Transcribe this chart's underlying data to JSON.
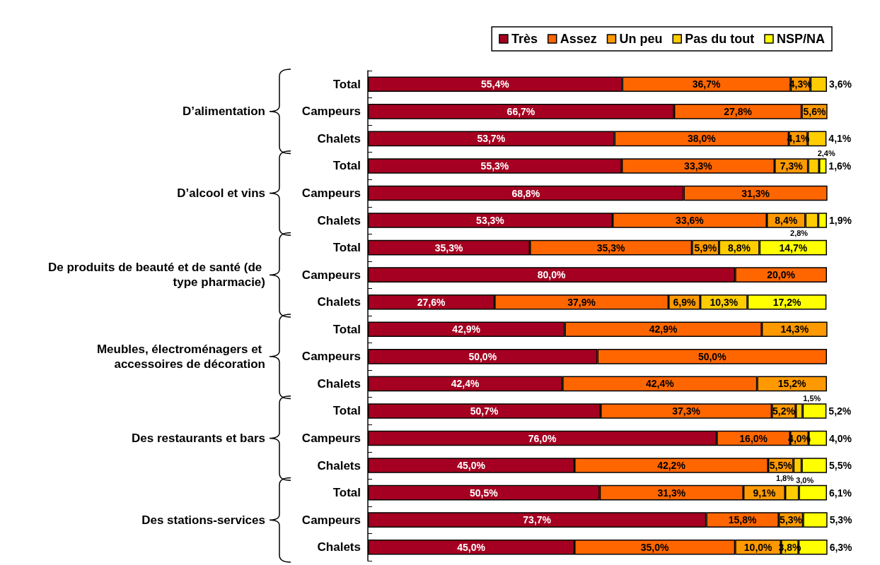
{
  "chart_data": {
    "type": "bar",
    "orientation": "horizontal",
    "stacked": true,
    "legend": "top right",
    "grid": false,
    "tick_labels": "y",
    "data_labels": true,
    "xlim": [
      0,
      100
    ],
    "categories": [
      "Total",
      "Campeurs",
      "Chalets",
      "Total",
      "Campeurs",
      "Chalets",
      "Total",
      "Campeurs",
      "Chalets",
      "Total",
      "Campeurs",
      "Chalets",
      "Total",
      "Campeurs",
      "Chalets",
      "Total",
      "Campeurs",
      "Chalets"
    ],
    "annotations": [
      "D’alimentation",
      "D’alcool et vins",
      "De produits de beauté et de santé (de type pharmacie)",
      "Meubles, électroménagers et accessoires de décoration",
      "Des restaurants et bars",
      "Des stations-services"
    ],
    "series": [
      {
        "name": "Très",
        "color": "#a50021",
        "values": [
          55.4,
          66.7,
          53.7,
          55.3,
          68.8,
          53.3,
          35.3,
          80.0,
          27.6,
          42.9,
          50.0,
          42.4,
          50.7,
          76.0,
          45.0,
          50.5,
          73.7,
          45.0
        ],
        "value_labels": [
          "55,4%",
          "66,7%",
          "53,7%",
          "55,3%",
          "68,8%",
          "53,3%",
          "35,3%",
          "80,0%",
          "27,6%",
          "42,9%",
          "50,0%",
          "42,4%",
          "50,7%",
          "76,0%",
          "45,0%",
          "50,5%",
          "73,7%",
          "45,0%"
        ]
      },
      {
        "name": "Assez",
        "color": "#ff6600",
        "values": [
          36.7,
          27.8,
          38.0,
          33.3,
          31.3,
          33.6,
          35.3,
          20.0,
          37.9,
          42.9,
          50.0,
          42.4,
          37.3,
          16.0,
          42.2,
          31.3,
          15.8,
          35.0
        ],
        "value_labels": [
          "36,7%",
          "27,8%",
          "38,0%",
          "33,3%",
          "31,3%",
          "33,6%",
          "35,3%",
          "20,0%",
          "37,9%",
          "42,9%",
          "50,0%",
          "42,4%",
          "37,3%",
          "16,0%",
          "42,2%",
          "31,3%",
          "15,8%",
          "35,0%"
        ]
      },
      {
        "name": "Un peu",
        "color": "#ff9900",
        "values": [
          4.3,
          5.6,
          4.1,
          7.3,
          null,
          8.4,
          5.9,
          null,
          6.9,
          14.3,
          null,
          15.2,
          5.2,
          4.0,
          5.5,
          9.1,
          5.3,
          10.0
        ],
        "value_labels": [
          "4,3%",
          "5,6%",
          "4,1%",
          "7,3%",
          null,
          "8,4%",
          "5,9%",
          null,
          "6,9%",
          "14,3%",
          null,
          "15,2%",
          "5,2%",
          "4,0%",
          "5,5%",
          "9,1%",
          "5,3%",
          "10,0%"
        ]
      },
      {
        "name": "Pas du tout",
        "color": "#ffcc00",
        "values": [
          3.6,
          null,
          4.1,
          2.4,
          null,
          2.8,
          8.8,
          null,
          10.3,
          null,
          null,
          null,
          1.5,
          null,
          1.8,
          3.0,
          null,
          3.8
        ],
        "value_labels": [
          "3,6%",
          null,
          "4,1%",
          "2,4%",
          null,
          "2,8%",
          "8,8%",
          null,
          "10,3%",
          null,
          null,
          null,
          "1,5%",
          null,
          "1,8%",
          "3,0%",
          null,
          "3,8%"
        ]
      },
      {
        "name": "NSP/NA",
        "color": "#ffff00",
        "values": [
          null,
          null,
          null,
          1.6,
          null,
          1.9,
          14.7,
          null,
          17.2,
          null,
          null,
          null,
          5.2,
          4.0,
          5.5,
          6.1,
          5.3,
          6.3
        ],
        "value_labels": [
          null,
          null,
          null,
          "1,6%",
          null,
          "1,9%",
          "14,7%",
          null,
          "17,2%",
          null,
          null,
          null,
          "5,2%",
          "4,0%",
          "5,5%",
          "6,1%",
          "5,3%",
          "6,3%"
        ]
      }
    ]
  }
}
